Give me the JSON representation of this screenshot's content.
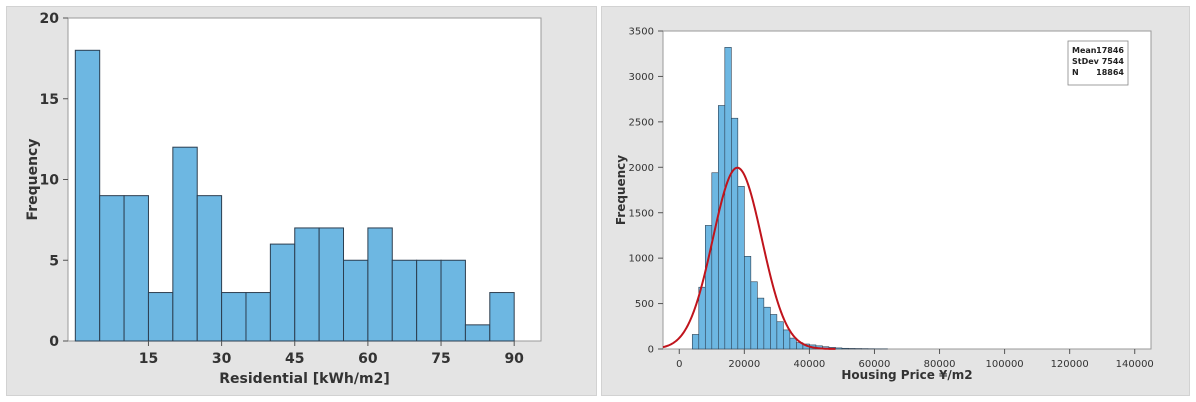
{
  "colors": {
    "bar_fill": "#6db7e2",
    "bar_stroke": "#2c3e50",
    "curve": "#c0141c",
    "panel_bg": "#e4e4e4",
    "plot_bg": "#ffffff"
  },
  "chart_data": [
    {
      "type": "bar",
      "title": "",
      "xlabel": "Residential [kWh/m2]",
      "ylabel": "Frequency",
      "bin_width": 5,
      "bin_start": 0,
      "values": [
        18,
        9,
        9,
        3,
        12,
        9,
        3,
        3,
        6,
        7,
        7,
        5,
        7,
        5,
        5,
        5,
        1,
        3
      ],
      "xlim": [
        -1.5,
        95.5
      ],
      "ylim": [
        0,
        20
      ],
      "xticks": [
        15,
        30,
        45,
        60,
        75,
        90
      ],
      "yticks": [
        0,
        5,
        10,
        15,
        20
      ],
      "grid": false
    },
    {
      "type": "bar",
      "title": "",
      "xlabel": "Housing Price ¥/m2",
      "ylabel": "Frequency",
      "bin_width": 2000,
      "bin_start": 4000,
      "values": [
        160,
        680,
        1360,
        1940,
        2680,
        3320,
        2540,
        1790,
        1020,
        740,
        560,
        460,
        380,
        300,
        210,
        120,
        70,
        55,
        45,
        35,
        25,
        18,
        12,
        8,
        6,
        5,
        4,
        3,
        2,
        2
      ],
      "fit_curve": {
        "type": "normal",
        "mean": 17846,
        "stdev": 7544,
        "n": 18864
      },
      "xlim": [
        -5000,
        145000
      ],
      "ylim": [
        0,
        3500
      ],
      "xticks": [
        0,
        20000,
        40000,
        60000,
        80000,
        100000,
        120000,
        140000
      ],
      "yticks": [
        0,
        500,
        1000,
        1500,
        2000,
        2500,
        3000,
        3500
      ],
      "grid": false,
      "legend_position": "top-right",
      "stats": [
        {
          "label": "Mean",
          "value": "17846"
        },
        {
          "label": "StDev",
          "value": "7544"
        },
        {
          "label": "N",
          "value": "18864"
        }
      ]
    }
  ]
}
